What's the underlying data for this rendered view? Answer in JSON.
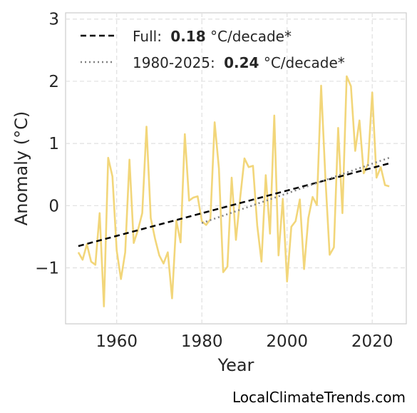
{
  "chart_data": {
    "type": "line",
    "title": "",
    "xlabel": "Year",
    "ylabel": "Anomaly (°C)",
    "xlim": [
      1948,
      2028
    ],
    "ylim": [
      -1.9,
      3.1
    ],
    "x_ticks": [
      1960,
      1980,
      2000,
      2020
    ],
    "x_tick_labels": [
      "1960",
      "1980",
      "2000",
      "2020"
    ],
    "y_ticks": [
      -1,
      0,
      1,
      2,
      3
    ],
    "y_tick_labels": [
      "−1",
      "0",
      "1",
      "2",
      "3"
    ],
    "grid": true,
    "legend_position": "top-left",
    "series": [
      {
        "kind": "observed",
        "color": "#f2d67a",
        "x": [
          1951,
          1952,
          1953,
          1954,
          1955,
          1956,
          1957,
          1958,
          1959,
          1960,
          1961,
          1962,
          1963,
          1964,
          1965,
          1966,
          1967,
          1968,
          1969,
          1970,
          1971,
          1972,
          1973,
          1974,
          1975,
          1976,
          1977,
          1978,
          1979,
          1980,
          1981,
          1982,
          1983,
          1984,
          1985,
          1986,
          1987,
          1988,
          1989,
          1990,
          1991,
          1992,
          1993,
          1994,
          1995,
          1996,
          1997,
          1998,
          1999,
          2000,
          2001,
          2002,
          2003,
          2004,
          2005,
          2006,
          2007,
          2008,
          2009,
          2010,
          2011,
          2012,
          2013,
          2014,
          2015,
          2016,
          2017,
          2018,
          2019,
          2020,
          2021,
          2022,
          2023,
          2024
        ],
        "y": [
          -0.75,
          -0.87,
          -0.62,
          -0.9,
          -0.95,
          -0.12,
          -1.62,
          0.77,
          0.47,
          -0.72,
          -1.18,
          -0.75,
          0.74,
          -0.6,
          -0.39,
          -0.12,
          1.27,
          -0.2,
          -0.53,
          -0.8,
          -0.93,
          -0.75,
          -1.49,
          -0.24,
          -0.59,
          1.15,
          0.08,
          0.13,
          0.15,
          -0.25,
          -0.31,
          -0.22,
          1.34,
          0.6,
          -1.07,
          -0.98,
          0.45,
          -0.55,
          0.13,
          0.76,
          0.62,
          0.64,
          -0.32,
          -0.9,
          0.49,
          -0.45,
          1.45,
          -0.8,
          0.11,
          -1.22,
          -0.34,
          -0.25,
          0.1,
          -1.02,
          -0.2,
          0.14,
          0.01,
          1.93,
          0.45,
          -0.79,
          -0.67,
          1.25,
          -0.12,
          2.08,
          1.92,
          0.88,
          1.37,
          0.52,
          0.67,
          1.82,
          0.45,
          0.62,
          0.33,
          0.31
        ]
      },
      {
        "name": "Full",
        "color": "#000000",
        "style": "dashed",
        "rate": "0.18",
        "unit": "°C/decade*",
        "x": [
          1951,
          2024
        ],
        "y": [
          -0.65,
          0.68
        ]
      },
      {
        "name": "1980-2025",
        "color": "#808080",
        "style": "dotted",
        "rate": "0.24",
        "unit": "°C/decade*",
        "x": [
          1980,
          2024
        ],
        "y": [
          -0.28,
          0.77
        ]
      }
    ]
  },
  "legend": {
    "full": {
      "label": "Full:",
      "value": "0.18",
      "unit": "°C/decade*"
    },
    "recent": {
      "label": "1980-2025:",
      "value": "0.24",
      "unit": "°C/decade*"
    }
  },
  "credit": "LocalClimateTrends.com"
}
